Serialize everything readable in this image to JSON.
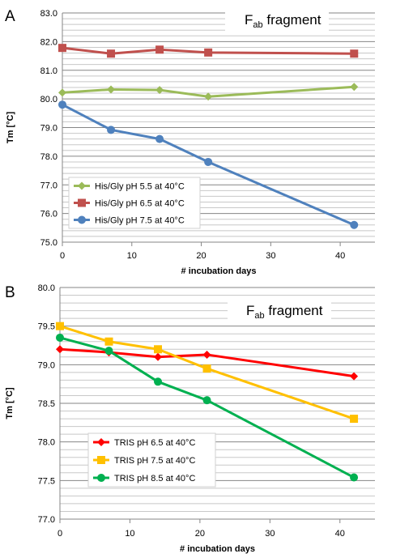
{
  "chart_data": [
    {
      "type": "line",
      "panel_label": "A",
      "annotation": {
        "main": "F",
        "sub": "ab",
        "rest": " fragment"
      },
      "xlabel": "# incubation days",
      "ylabel": "Tm [°C]",
      "xlim": [
        0,
        45
      ],
      "ylim": [
        75.0,
        83.0
      ],
      "xticks": [
        0,
        10,
        20,
        30,
        40
      ],
      "yticks": [
        75.0,
        76.0,
        77.0,
        78.0,
        79.0,
        80.0,
        81.0,
        82.0,
        83.0
      ],
      "ytick_decimals": 1,
      "grid": true,
      "legend_position": "bottom-left",
      "series": [
        {
          "name": "His/Gly pH 5.5 at 40°C",
          "color": "#9BBB59",
          "marker": "diamond",
          "x": [
            0,
            7,
            14,
            21,
            42
          ],
          "y": [
            80.22,
            80.33,
            80.31,
            80.08,
            80.42
          ]
        },
        {
          "name": "His/Gly pH 6.5 at 40°C",
          "color": "#C0504D",
          "marker": "square",
          "x": [
            0,
            7,
            14,
            21,
            42
          ],
          "y": [
            81.78,
            81.58,
            81.72,
            81.62,
            81.58
          ]
        },
        {
          "name": "His/Gly pH 7.5 at 40°C",
          "color": "#4F81BD",
          "marker": "circle",
          "x": [
            0,
            7,
            14,
            21,
            42
          ],
          "y": [
            79.8,
            78.92,
            78.6,
            77.8,
            75.6
          ]
        }
      ]
    },
    {
      "type": "line",
      "panel_label": "B",
      "annotation": {
        "main": "F",
        "sub": "ab",
        "rest": " fragment"
      },
      "xlabel": "# incubation days",
      "ylabel": "Tm [°C]",
      "xlim": [
        0,
        45
      ],
      "ylim": [
        77.0,
        80.0
      ],
      "xticks": [
        0,
        10,
        20,
        30,
        40
      ],
      "yticks": [
        77.0,
        77.5,
        78.0,
        78.5,
        79.0,
        79.5,
        80.0
      ],
      "ytick_decimals": 1,
      "grid": true,
      "legend_position": "bottom-left",
      "series": [
        {
          "name": "TRIS pH 6.5 at 40°C",
          "color": "#FF0000",
          "marker": "diamond",
          "x": [
            0,
            7,
            14,
            21,
            42
          ],
          "y": [
            79.2,
            79.16,
            79.1,
            79.13,
            78.85
          ]
        },
        {
          "name": "TRIS pH 7.5 at 40°C",
          "color": "#FFC000",
          "marker": "square",
          "x": [
            0,
            7,
            14,
            21,
            42
          ],
          "y": [
            79.5,
            79.3,
            79.2,
            78.95,
            78.3
          ]
        },
        {
          "name": "TRIS pH 8.5 at 40°C",
          "color": "#00B050",
          "marker": "circle",
          "x": [
            0,
            7,
            14,
            21,
            42
          ],
          "y": [
            79.35,
            79.18,
            78.78,
            78.54,
            77.54
          ]
        }
      ]
    }
  ]
}
